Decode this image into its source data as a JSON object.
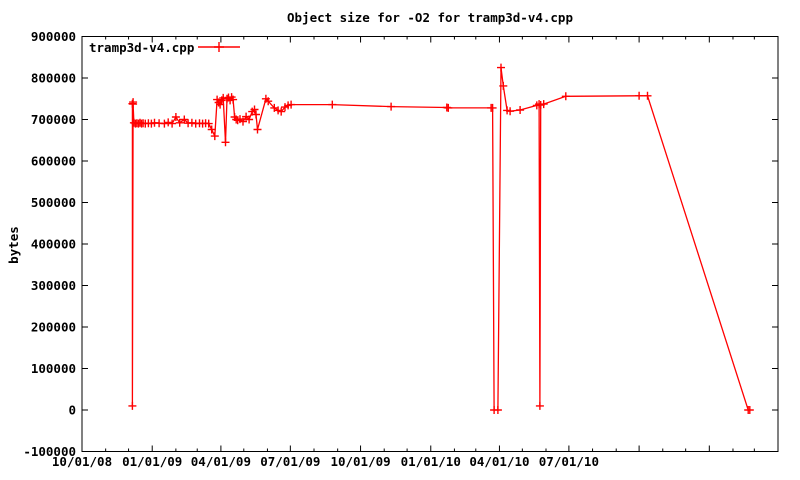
{
  "chart_data": {
    "type": "line",
    "title": "Object size for -O2 for tramp3d-v4.cpp",
    "xlabel": "",
    "ylabel": "bytes",
    "grid": false,
    "background_color": "#ffffff",
    "frame_color": "#000000",
    "text_color": "#000000",
    "xlim": [
      "2008-10-01",
      "2011-04-01"
    ],
    "ylim": [
      -100000,
      900000
    ],
    "y_ticks": [
      {
        "value": 900000,
        "label": "900000"
      },
      {
        "value": 800000,
        "label": "800000"
      },
      {
        "value": 700000,
        "label": "700000"
      },
      {
        "value": 600000,
        "label": "600000"
      },
      {
        "value": 500000,
        "label": "500000"
      },
      {
        "value": 400000,
        "label": "400000"
      },
      {
        "value": 300000,
        "label": "300000"
      },
      {
        "value": 200000,
        "label": "200000"
      },
      {
        "value": 100000,
        "label": "100000"
      },
      {
        "value": 0,
        "label": "0"
      },
      {
        "value": -100000,
        "label": "-100000"
      }
    ],
    "x_ticks": [
      {
        "date": "2008-10-01",
        "label": "10/01/08"
      },
      {
        "date": "2009-01-01",
        "label": "01/01/09"
      },
      {
        "date": "2009-04-01",
        "label": "04/01/09"
      },
      {
        "date": "2009-07-01",
        "label": "07/01/09"
      },
      {
        "date": "2009-10-01",
        "label": "10/01/09"
      },
      {
        "date": "2010-01-01",
        "label": "01/01/10"
      },
      {
        "date": "2010-04-01",
        "label": "04/01/10"
      },
      {
        "date": "2010-07-01",
        "label": "07/01/10"
      },
      {
        "date": "2010-10-01",
        "label": ""
      },
      {
        "date": "2011-01-01",
        "label": ""
      },
      {
        "date": "2011-04-01",
        "label": ""
      }
    ],
    "legend": {
      "position": "top-left-inside",
      "entries": [
        {
          "label": "tramp3d-v4.cpp",
          "color": "#ff0000",
          "marker": "plus"
        }
      ]
    },
    "series": [
      {
        "name": "tramp3d-v4.cpp",
        "color": "#ff0000",
        "marker": "plus",
        "points": [
          [
            "2008-12-06",
            738000
          ],
          [
            "2008-12-06",
            10000
          ],
          [
            "2008-12-07",
            742000
          ],
          [
            "2008-12-07",
            737000
          ],
          [
            "2008-12-08",
            692000
          ],
          [
            "2008-12-10",
            690000
          ],
          [
            "2008-12-12",
            691000
          ],
          [
            "2008-12-14",
            690000
          ],
          [
            "2008-12-16",
            692000
          ],
          [
            "2008-12-18",
            690000
          ],
          [
            "2008-12-20",
            691000
          ],
          [
            "2008-12-23",
            690000
          ],
          [
            "2008-12-27",
            691000
          ],
          [
            "2008-12-31",
            690000
          ],
          [
            "2009-01-04",
            692000
          ],
          [
            "2009-01-10",
            691000
          ],
          [
            "2009-01-17",
            690000
          ],
          [
            "2009-01-22",
            693000
          ],
          [
            "2009-01-27",
            690000
          ],
          [
            "2009-02-01",
            706000
          ],
          [
            "2009-02-06",
            692000
          ],
          [
            "2009-02-12",
            700000
          ],
          [
            "2009-02-17",
            691000
          ],
          [
            "2009-02-22",
            692000
          ],
          [
            "2009-02-27",
            690000
          ],
          [
            "2009-03-04",
            691000
          ],
          [
            "2009-03-08",
            690000
          ],
          [
            "2009-03-12",
            691000
          ],
          [
            "2009-03-16",
            690000
          ],
          [
            "2009-03-20",
            676000
          ],
          [
            "2009-03-24",
            660000
          ],
          [
            "2009-03-27",
            748000
          ],
          [
            "2009-03-29",
            741000
          ],
          [
            "2009-03-31",
            736000
          ],
          [
            "2009-04-02",
            746000
          ],
          [
            "2009-04-04",
            752000
          ],
          [
            "2009-04-07",
            645000
          ],
          [
            "2009-04-09",
            750000
          ],
          [
            "2009-04-11",
            753000
          ],
          [
            "2009-04-13",
            746000
          ],
          [
            "2009-04-15",
            754000
          ],
          [
            "2009-04-17",
            748000
          ],
          [
            "2009-04-19",
            706000
          ],
          [
            "2009-04-21",
            700000
          ],
          [
            "2009-04-23",
            698000
          ],
          [
            "2009-04-26",
            701000
          ],
          [
            "2009-04-30",
            695000
          ],
          [
            "2009-05-04",
            707000
          ],
          [
            "2009-05-08",
            700000
          ],
          [
            "2009-05-12",
            719000
          ],
          [
            "2009-05-15",
            724000
          ],
          [
            "2009-05-17",
            712000
          ],
          [
            "2009-05-19",
            676000
          ],
          [
            "2009-05-30",
            750000
          ],
          [
            "2009-06-02",
            744000
          ],
          [
            "2009-06-10",
            728000
          ],
          [
            "2009-06-15",
            722000
          ],
          [
            "2009-06-19",
            719000
          ],
          [
            "2009-06-24",
            730000
          ],
          [
            "2009-06-28",
            734000
          ],
          [
            "2009-07-02",
            736000
          ],
          [
            "2009-08-25",
            736000
          ],
          [
            "2009-11-10",
            731000
          ],
          [
            "2010-01-22",
            729000
          ],
          [
            "2010-01-24",
            728000
          ],
          [
            "2010-03-21",
            728000
          ],
          [
            "2010-03-23",
            728000
          ],
          [
            "2010-03-25",
            0
          ],
          [
            "2010-03-30",
            0
          ],
          [
            "2010-04-03",
            825000
          ],
          [
            "2010-04-06",
            781000
          ],
          [
            "2010-04-11",
            722000
          ],
          [
            "2010-04-15",
            720000
          ],
          [
            "2010-04-28",
            723000
          ],
          [
            "2010-05-20",
            734000
          ],
          [
            "2010-05-23",
            737000
          ],
          [
            "2010-05-24",
            10000
          ],
          [
            "2010-05-25",
            735000
          ],
          [
            "2010-05-29",
            737000
          ],
          [
            "2010-06-27",
            756000
          ],
          [
            "2010-10-01",
            757000
          ],
          [
            "2010-10-12",
            757000
          ],
          [
            "2011-02-21",
            0
          ],
          [
            "2011-02-23",
            0
          ]
        ]
      }
    ]
  }
}
